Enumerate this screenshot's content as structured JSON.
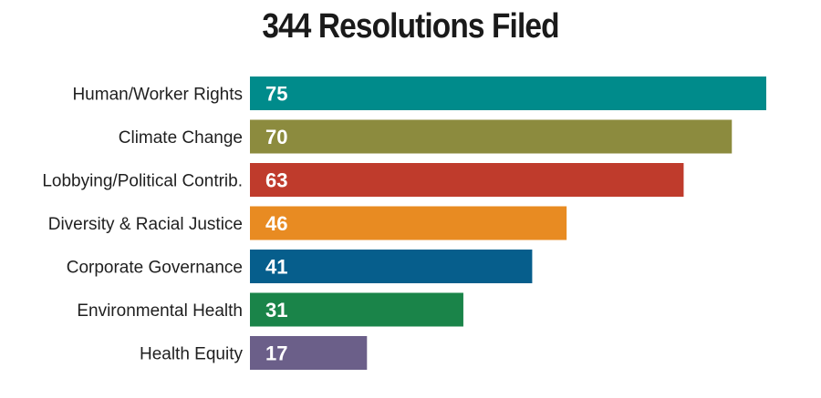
{
  "chart_data": {
    "type": "bar",
    "orientation": "horizontal",
    "title": "344 Resolutions Filed",
    "xlabel": "",
    "ylabel": "",
    "grid": false,
    "legend": "none",
    "xlim": [
      0,
      75
    ],
    "categories": [
      "Human/Worker Rights",
      "Climate Change",
      "Lobbying/Political Contrib.",
      "Diversity & Racial Justice",
      "Corporate Governance",
      "Environmental Health",
      "Health Equity"
    ],
    "values": [
      75,
      70,
      63,
      46,
      41,
      31,
      17
    ],
    "colors": [
      "#008b8b",
      "#8c8b3e",
      "#bf3b2c",
      "#e88b22",
      "#065e8c",
      "#1a8449",
      "#6b5f89"
    ]
  }
}
